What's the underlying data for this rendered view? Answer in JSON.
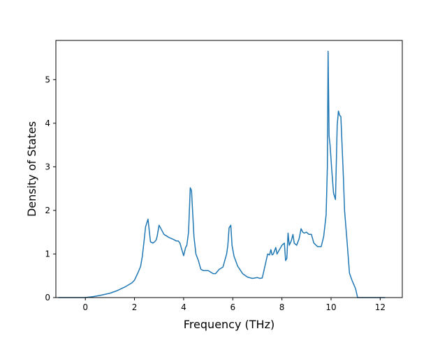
{
  "chart_data": {
    "type": "line",
    "title": "",
    "xlabel": "Frequency (THz)",
    "ylabel": "Density of States",
    "xlim": [
      -1.2,
      12.9
    ],
    "ylim": [
      0,
      5.9
    ],
    "xticks": [
      0,
      2,
      4,
      6,
      8,
      10,
      12
    ],
    "yticks": [
      0,
      1,
      2,
      3,
      4,
      5
    ],
    "grid": false,
    "legend": "none",
    "line_color": "#1f77b4",
    "series": [
      {
        "x": [
          -1.1,
          -0.5,
          0.0,
          0.3,
          0.6,
          1.0,
          1.3,
          1.6,
          1.9,
          2.0,
          2.15,
          2.25,
          2.32,
          2.4,
          2.45,
          2.55,
          2.65,
          2.75,
          2.82,
          2.88,
          2.92,
          3.0,
          3.2,
          3.4,
          3.6,
          3.7,
          3.78,
          3.85,
          3.9,
          4.0,
          4.08,
          4.13,
          4.2,
          4.27,
          4.32,
          4.42,
          4.5,
          4.6,
          4.7,
          4.8,
          5.0,
          5.2,
          5.3,
          5.45,
          5.6,
          5.75,
          5.8,
          5.85,
          5.92,
          5.97,
          6.05,
          6.2,
          6.4,
          6.6,
          6.8,
          7.0,
          7.1,
          7.2,
          7.3,
          7.42,
          7.5,
          7.55,
          7.6,
          7.65,
          7.75,
          7.8,
          7.85,
          7.9,
          8.0,
          8.1,
          8.15,
          8.2,
          8.25,
          8.3,
          8.38,
          8.45,
          8.5,
          8.6,
          8.7,
          8.78,
          8.85,
          8.9,
          9.0,
          9.1,
          9.2,
          9.3,
          9.45,
          9.6,
          9.7,
          9.8,
          9.85,
          9.88,
          9.92,
          9.96,
          10.02,
          10.1,
          10.18,
          10.25,
          10.3,
          10.35,
          10.4,
          10.5,
          10.55,
          10.65,
          10.75,
          10.85,
          11.0,
          11.08,
          11.2,
          11.5,
          12.2
        ],
        "y": [
          0.0,
          0.0,
          0.0,
          0.02,
          0.05,
          0.1,
          0.16,
          0.24,
          0.34,
          0.4,
          0.58,
          0.72,
          0.95,
          1.35,
          1.62,
          1.8,
          1.28,
          1.25,
          1.28,
          1.32,
          1.4,
          1.66,
          1.45,
          1.38,
          1.33,
          1.3,
          1.3,
          1.25,
          1.15,
          0.96,
          1.15,
          1.2,
          1.5,
          2.52,
          2.46,
          1.4,
          1.0,
          0.85,
          0.65,
          0.62,
          0.62,
          0.55,
          0.55,
          0.65,
          0.7,
          1.0,
          1.2,
          1.6,
          1.66,
          1.2,
          0.95,
          0.72,
          0.55,
          0.47,
          0.44,
          0.46,
          0.44,
          0.45,
          0.7,
          1.0,
          0.98,
          1.1,
          0.98,
          1.0,
          1.15,
          1.0,
          1.05,
          1.1,
          1.2,
          1.25,
          0.85,
          0.9,
          1.48,
          1.2,
          1.3,
          1.45,
          1.25,
          1.2,
          1.35,
          1.58,
          1.5,
          1.48,
          1.5,
          1.45,
          1.45,
          1.25,
          1.17,
          1.17,
          1.4,
          1.9,
          3.0,
          5.65,
          3.7,
          3.5,
          3.0,
          2.4,
          2.25,
          3.95,
          4.28,
          4.18,
          4.15,
          2.8,
          2.0,
          1.3,
          0.56,
          0.4,
          0.2,
          0.0,
          0.0,
          0.0,
          0.0
        ]
      }
    ]
  }
}
